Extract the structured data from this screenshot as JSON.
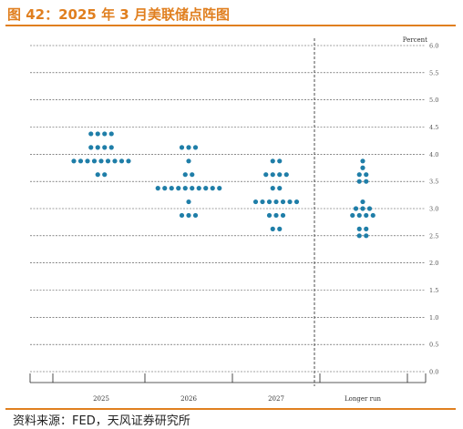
{
  "header": {
    "title": "图 42：2025 年 3 月美联储点阵图"
  },
  "footer": {
    "source": "资料来源：FED，天风证券研究所"
  },
  "colors": {
    "accent": "#e07f1f",
    "dots": "#1f7ea8",
    "grid": "#444444"
  },
  "chart_data": {
    "type": "scatter",
    "title": "",
    "ylabel": "Percent",
    "ylim": [
      0.0,
      6.0
    ],
    "ytick_step": 0.5,
    "ytick_labels": [
      "0.0",
      "0.5",
      "1.0",
      "1.5",
      "2.0",
      "2.5",
      "3.0",
      "3.5",
      "4.0",
      "4.5",
      "5.0",
      "5.5",
      "6.0"
    ],
    "grid": "dashed horizontal",
    "categories": [
      "2025",
      "2026",
      "2027",
      "Longer run"
    ],
    "divider_after_category": 2,
    "series": [
      {
        "category": "2025",
        "points": [
          {
            "y": 4.375,
            "count": 4
          },
          {
            "y": 4.125,
            "count": 4
          },
          {
            "y": 3.875,
            "count": 9
          },
          {
            "y": 3.625,
            "count": 2
          }
        ]
      },
      {
        "category": "2026",
        "points": [
          {
            "y": 4.125,
            "count": 3
          },
          {
            "y": 3.875,
            "count": 1
          },
          {
            "y": 3.625,
            "count": 2
          },
          {
            "y": 3.375,
            "count": 10
          },
          {
            "y": 3.125,
            "count": 1
          },
          {
            "y": 2.875,
            "count": 3
          }
        ]
      },
      {
        "category": "2027",
        "points": [
          {
            "y": 3.875,
            "count": 2
          },
          {
            "y": 3.625,
            "count": 4
          },
          {
            "y": 3.375,
            "count": 2
          },
          {
            "y": 3.125,
            "count": 7
          },
          {
            "y": 2.875,
            "count": 3
          },
          {
            "y": 2.625,
            "count": 2
          }
        ]
      },
      {
        "category": "Longer run",
        "points": [
          {
            "y": 3.875,
            "count": 1
          },
          {
            "y": 3.75,
            "count": 1
          },
          {
            "y": 3.625,
            "count": 2
          },
          {
            "y": 3.5,
            "count": 2
          },
          {
            "y": 3.125,
            "count": 1
          },
          {
            "y": 3.0,
            "count": 3
          },
          {
            "y": 2.875,
            "count": 4
          },
          {
            "y": 2.625,
            "count": 2
          },
          {
            "y": 2.5,
            "count": 2
          }
        ]
      }
    ]
  }
}
